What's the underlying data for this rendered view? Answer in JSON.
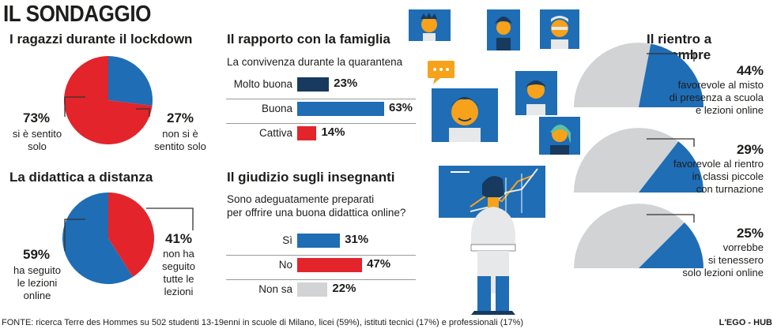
{
  "title": "IL SONDAGGIO",
  "colors": {
    "red": "#e3242b",
    "blue": "#1f6db5",
    "navy": "#173a5e",
    "grey": "#d2d3d5",
    "line": "#333333"
  },
  "lockdown": {
    "title": "I ragazzi durante il lockdown",
    "left_pct": "73%",
    "left_label": [
      "si è sentito",
      "solo"
    ],
    "right_pct": "27%",
    "right_label": [
      "non si è",
      "sentito solo"
    ]
  },
  "didattica": {
    "title": "La didattica a distanza",
    "left_pct": "59%",
    "left_label": [
      "ha seguito",
      "le lezioni",
      "online"
    ],
    "right_pct": "41%",
    "right_label": [
      "non ha",
      "seguito",
      "tutte le",
      "lezioni"
    ]
  },
  "famiglia": {
    "title": "Il rapporto con la famiglia",
    "subtitle": "La convivenza durante la quarantena"
  },
  "insegnanti": {
    "title": "Il giudizio sugli insegnanti",
    "subtitle": [
      "Sono adeguatamente preparati",
      "per offrire una buona didattica online?"
    ]
  },
  "rientro": {
    "title": "Il rientro a settembre",
    "items": [
      {
        "pct": "44%",
        "label": [
          "favorevole al misto",
          "di presenza a scuola",
          "e lezioni online"
        ]
      },
      {
        "pct": "29%",
        "label": [
          "favorevole al rientro",
          "in classi piccole",
          "con turnazione"
        ]
      },
      {
        "pct": "25%",
        "label": [
          "vorrebbe",
          "si tenessero",
          "solo lezioni online"
        ]
      }
    ]
  },
  "footer": "FONTE: ricerca Terre des Hommes su 502 studenti 13-19enni in scuole di Milano, licei (59%), istituti tecnici (17%) e professionali (17%)",
  "credit": "L'EGO - HUB",
  "chart_data": [
    {
      "type": "pie",
      "title": "I ragazzi durante il lockdown",
      "slices": [
        {
          "label": "si è sentito solo",
          "value": 73,
          "color": "#e3242b"
        },
        {
          "label": "non si è sentito solo",
          "value": 27,
          "color": "#1f6db5"
        }
      ]
    },
    {
      "type": "pie",
      "title": "La didattica a distanza",
      "slices": [
        {
          "label": "ha seguito le lezioni online",
          "value": 59,
          "color": "#1f6db5"
        },
        {
          "label": "non ha seguito tutte le lezioni",
          "value": 41,
          "color": "#e3242b"
        }
      ]
    },
    {
      "type": "bar",
      "title": "Il rapporto con la famiglia",
      "subtitle": "La convivenza durante la quarantena",
      "categories": [
        "Molto buona",
        "Buona",
        "Cattiva"
      ],
      "values": [
        23,
        63,
        14
      ],
      "labels": [
        "23%",
        "63%",
        "14%"
      ],
      "colors": [
        "#173a5e",
        "#1f6db5",
        "#e3242b"
      ]
    },
    {
      "type": "bar",
      "title": "Il giudizio sugli insegnanti",
      "categories": [
        "Sì",
        "No",
        "Non sa"
      ],
      "values": [
        31,
        47,
        22
      ],
      "labels": [
        "31%",
        "47%",
        "22%"
      ],
      "colors": [
        "#1f6db5",
        "#e3242b",
        "#d2d3d5"
      ]
    },
    {
      "type": "pie",
      "title": "Il rientro a settembre",
      "values": [
        44,
        29,
        25
      ],
      "labels": [
        "44%",
        "29%",
        "25%"
      ]
    }
  ]
}
